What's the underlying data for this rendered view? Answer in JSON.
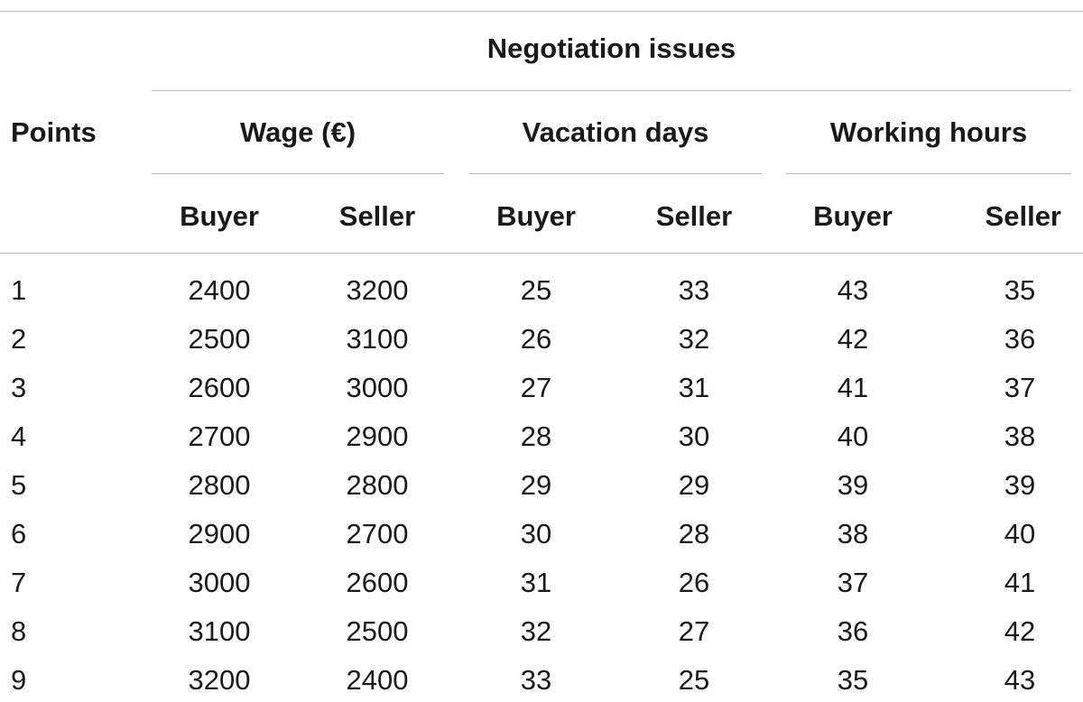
{
  "table": {
    "group_header": "Negotiation issues",
    "points_header": "Points",
    "issues": [
      {
        "label": "Wage (€)",
        "buyer": "Buyer",
        "seller": "Seller"
      },
      {
        "label": "Vacation days",
        "buyer": "Buyer",
        "seller": "Seller"
      },
      {
        "label": "Working hours",
        "buyer": "Buyer",
        "seller": "Seller"
      }
    ],
    "rows": [
      [
        "1",
        "2400",
        "3200",
        "25",
        "33",
        "43",
        "35"
      ],
      [
        "2",
        "2500",
        "3100",
        "26",
        "32",
        "42",
        "36"
      ],
      [
        "3",
        "2600",
        "3000",
        "27",
        "31",
        "41",
        "37"
      ],
      [
        "4",
        "2700",
        "2900",
        "28",
        "30",
        "40",
        "38"
      ],
      [
        "5",
        "2800",
        "2800",
        "29",
        "29",
        "39",
        "39"
      ],
      [
        "6",
        "2900",
        "2700",
        "30",
        "28",
        "38",
        "40"
      ],
      [
        "7",
        "3000",
        "2600",
        "31",
        "26",
        "37",
        "41"
      ],
      [
        "8",
        "3100",
        "2500",
        "32",
        "27",
        "36",
        "42"
      ],
      [
        "9",
        "3200",
        "2400",
        "33",
        "25",
        "35",
        "43"
      ]
    ]
  }
}
